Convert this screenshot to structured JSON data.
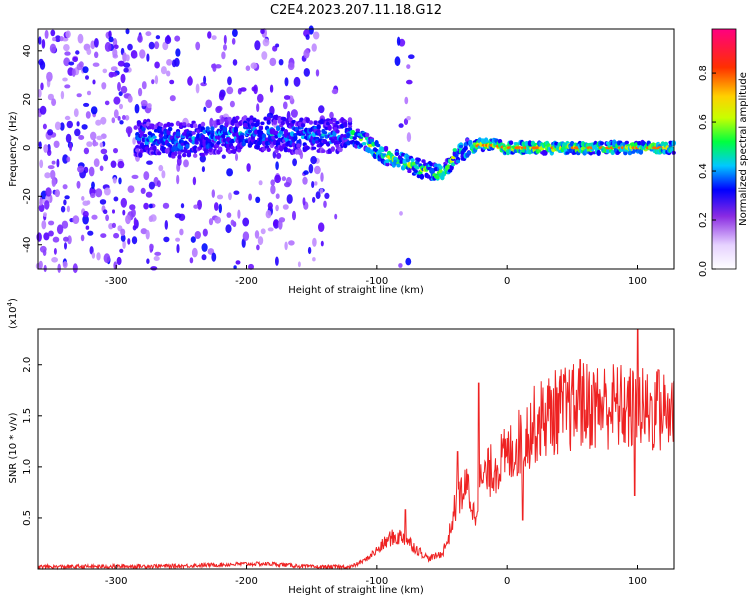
{
  "title": "C2E4.2023.207.11.18.G12",
  "colors": {
    "line": "#ee2222",
    "axis": "#000000",
    "colormap": [
      "#ffffff",
      "#b070ff",
      "#5a00ff",
      "#0000ff",
      "#00c8ff",
      "#00ff40",
      "#c8ff00",
      "#ffd000",
      "#ff3000",
      "#ff0080"
    ]
  },
  "chart_data": [
    {
      "type": "heatmap",
      "xlabel": "Height of straight line (km)",
      "ylabel": "Frequency (Hz)",
      "xlim": [
        -360,
        128
      ],
      "ylim": [
        -50,
        49
      ],
      "xticks": [
        -300,
        -200,
        -100,
        0,
        100
      ],
      "yticks": [
        -40,
        -20,
        0,
        20,
        40
      ],
      "colorbar": {
        "label": "Normalized spectral amplitude",
        "range": [
          0.0,
          0.98
        ],
        "ticks": [
          "0.0",
          "0.2",
          "0.4",
          "0.6",
          "0.8"
        ],
        "tick_values": [
          0.0,
          0.2,
          0.4,
          0.6,
          0.8
        ]
      },
      "ridge": [
        {
          "x": -280,
          "y": 4
        },
        {
          "x": -250,
          "y": 3
        },
        {
          "x": -220,
          "y": 5
        },
        {
          "x": -190,
          "y": 6
        },
        {
          "x": -160,
          "y": 5
        },
        {
          "x": -135,
          "y": 5
        },
        {
          "x": -125,
          "y": 6
        },
        {
          "x": -110,
          "y": 3
        },
        {
          "x": -100,
          "y": -1
        },
        {
          "x": -90,
          "y": -4
        },
        {
          "x": -80,
          "y": -6
        },
        {
          "x": -70,
          "y": -8
        },
        {
          "x": -60,
          "y": -9
        },
        {
          "x": -50,
          "y": -11
        },
        {
          "x": -45,
          "y": -8
        },
        {
          "x": -40,
          "y": -3
        },
        {
          "x": -30,
          "y": 0
        },
        {
          "x": -20,
          "y": 1
        },
        {
          "x": -10,
          "y": 1
        },
        {
          "x": 0,
          "y": 0
        },
        {
          "x": 30,
          "y": 0
        },
        {
          "x": 60,
          "y": 0
        },
        {
          "x": 90,
          "y": 0
        },
        {
          "x": 128,
          "y": 0
        }
      ]
    },
    {
      "type": "line",
      "xlabel": "Height of straight line (km)",
      "ylabel": "SNR (10 * v/v)",
      "yscale_label": "(x10",
      "yscale_exp": "4",
      "yscale_close": ")",
      "xlim": [
        -360,
        128
      ],
      "ylim": [
        0,
        2.35
      ],
      "xticks": [
        -300,
        -200,
        -100,
        0,
        100
      ],
      "yticks": [
        0.5,
        1.0,
        1.5,
        2.0
      ],
      "ytick_labels": [
        "0.5",
        "1.0",
        "1.5",
        "2.0"
      ],
      "envelope": [
        {
          "x": -360,
          "y": 0.02
        },
        {
          "x": -250,
          "y": 0.03
        },
        {
          "x": -200,
          "y": 0.05
        },
        {
          "x": -180,
          "y": 0.05
        },
        {
          "x": -150,
          "y": 0.02
        },
        {
          "x": -120,
          "y": 0.02
        },
        {
          "x": -110,
          "y": 0.08
        },
        {
          "x": -100,
          "y": 0.18
        },
        {
          "x": -90,
          "y": 0.3
        },
        {
          "x": -80,
          "y": 0.32
        },
        {
          "x": -70,
          "y": 0.2
        },
        {
          "x": -60,
          "y": 0.1
        },
        {
          "x": -50,
          "y": 0.15
        },
        {
          "x": -45,
          "y": 0.3
        },
        {
          "x": -40,
          "y": 0.6
        },
        {
          "x": -35,
          "y": 0.75
        },
        {
          "x": -30,
          "y": 0.8
        },
        {
          "x": -25,
          "y": 0.5
        },
        {
          "x": -20,
          "y": 0.85
        },
        {
          "x": -10,
          "y": 1.0
        },
        {
          "x": 0,
          "y": 1.1
        },
        {
          "x": 10,
          "y": 1.25
        },
        {
          "x": 20,
          "y": 1.4
        },
        {
          "x": 30,
          "y": 1.5
        },
        {
          "x": 40,
          "y": 1.55
        },
        {
          "x": 60,
          "y": 1.6
        },
        {
          "x": 80,
          "y": 1.6
        },
        {
          "x": 100,
          "y": 1.55
        },
        {
          "x": 128,
          "y": 1.55
        }
      ],
      "spikes": [
        {
          "x": -78,
          "y": 0.58
        },
        {
          "x": -38,
          "y": 1.15
        },
        {
          "x": -22,
          "y": 1.82
        },
        {
          "x": 12,
          "y": 0.48
        },
        {
          "x": 56,
          "y": 2.05
        },
        {
          "x": 98,
          "y": 0.72
        },
        {
          "x": 100,
          "y": 2.35
        },
        {
          "x": 116,
          "y": 1.95
        }
      ]
    }
  ]
}
